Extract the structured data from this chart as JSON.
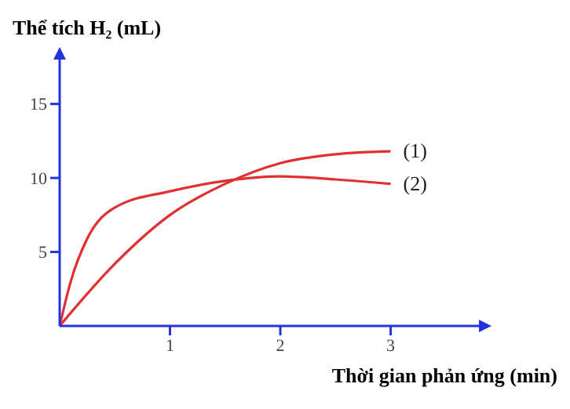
{
  "chart_data": {
    "type": "line",
    "xlabel": "Thời gian phản ứng (min)",
    "ylabel": "Thể tích H₂ (mL)",
    "xlim": [
      0,
      3.8
    ],
    "xticks": [
      1,
      2,
      3
    ],
    "ylim": [
      0,
      18
    ],
    "yticks": [
      5,
      10,
      15
    ],
    "grid": false,
    "legend": false,
    "marker": "none",
    "line_style": "solid",
    "series": [
      {
        "name": "(1)",
        "color": "#e03030",
        "x": [
          0,
          0.5,
          1,
          1.5,
          2,
          2.5,
          3
        ],
        "values": [
          0,
          4.2,
          7.5,
          9.6,
          11.0,
          11.6,
          11.8
        ]
      },
      {
        "name": "(2)",
        "color": "#e03030",
        "x": [
          0,
          0.1,
          0.25,
          0.5,
          1,
          1.5,
          2,
          2.5,
          3
        ],
        "values": [
          0,
          3.0,
          5.9,
          8.0,
          9.1,
          9.8,
          10.1,
          9.9,
          9.6
        ]
      }
    ]
  }
}
